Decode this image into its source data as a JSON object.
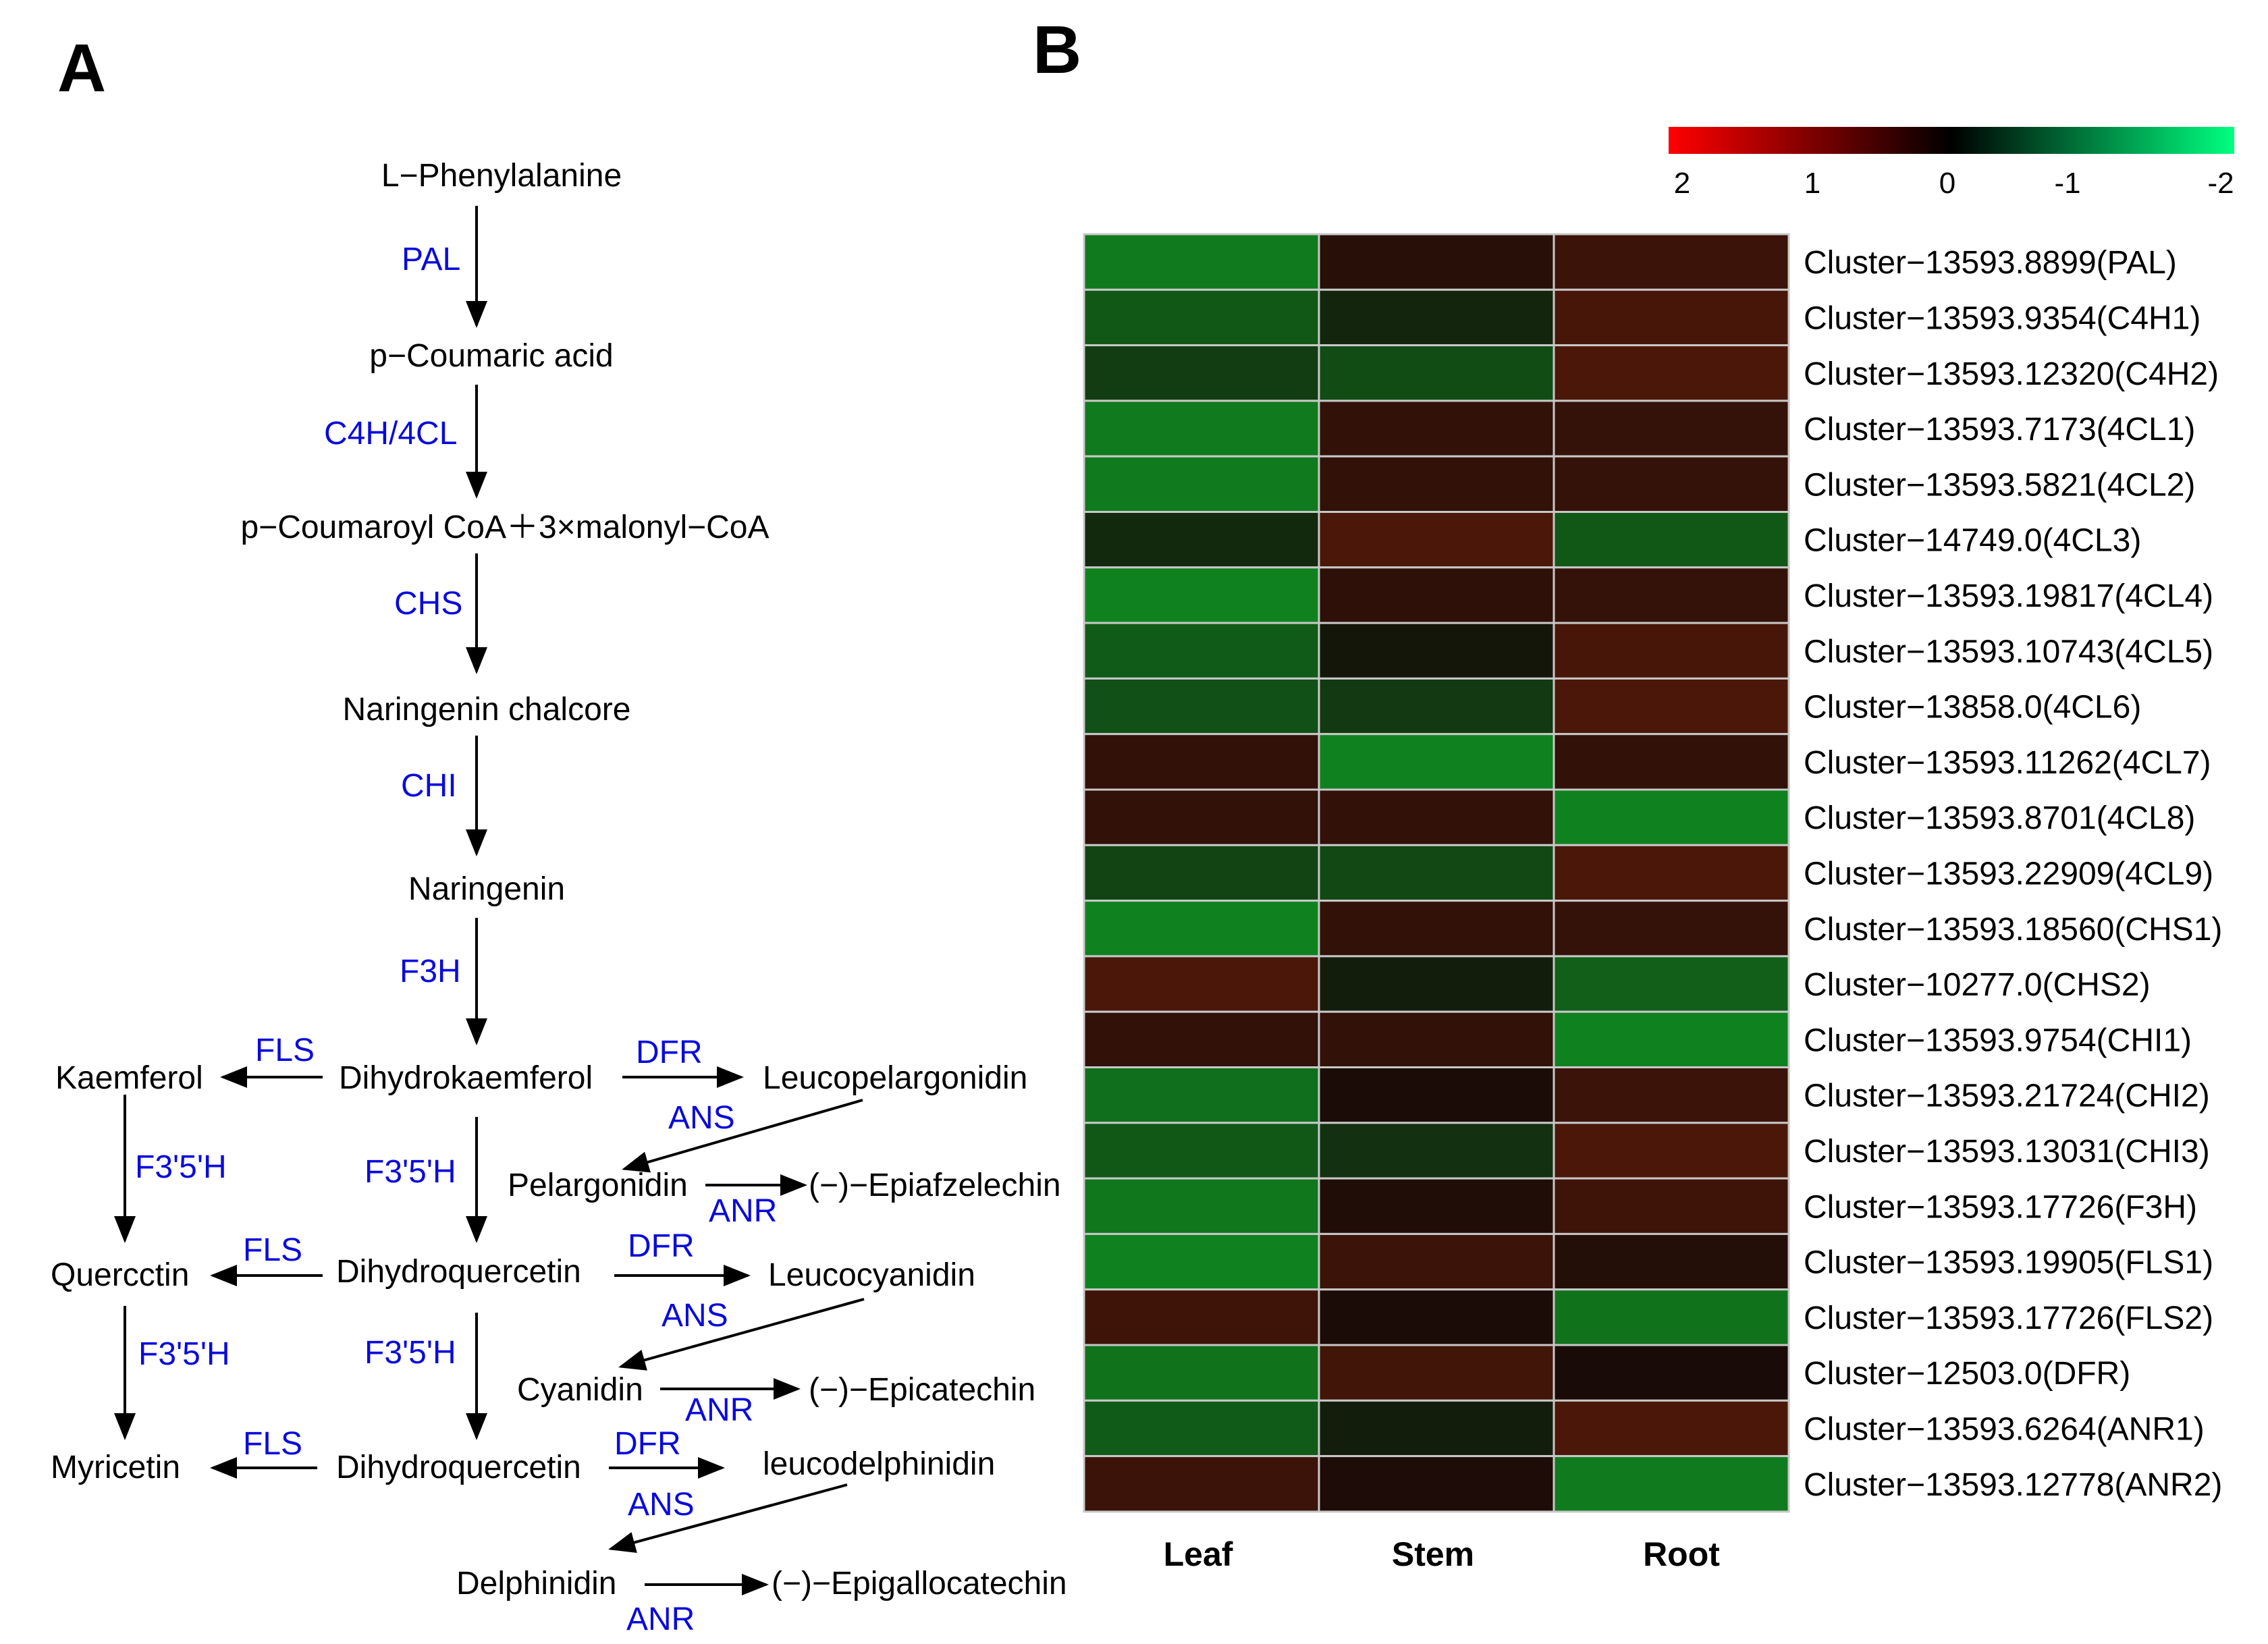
{
  "panels": {
    "a_label": "A",
    "b_label": "B"
  },
  "pathway": {
    "compounds": {
      "phe": "L−Phenylalanine",
      "coum": "p−Coumaric acid",
      "coa": "p−Coumaroyl CoA＋3×malonyl−CoA",
      "chalc": "Naringenin chalcore",
      "nar": "Naringenin",
      "dhk": "Dihydrokaemferol",
      "kaem": "Kaemferol",
      "leucopel": "Leucopelargonidin",
      "pel": "Pelargonidin",
      "epiaf": "(−)−Epiafzelechin",
      "querc": "Quercctin",
      "dhq1": "Dihydroquercetin",
      "leucocy": "Leucocyanidin",
      "cyan": "Cyanidin",
      "epicat": "(−)−Epicatechin",
      "myr": "Myricetin",
      "dhq2": "Dihydroquercetin",
      "leucodel": "leucodelphinidin",
      "delph": "Delphinidin",
      "epigallo": "(−)−Epigallocatechin"
    },
    "enzymes": {
      "pal": "PAL",
      "c4h4cl": "C4H/4CL",
      "chs": "CHS",
      "chi": "CHI",
      "f3h": "F3H",
      "fls1": "FLS",
      "dfr1": "DFR",
      "ans1": "ANS",
      "anr1": "ANR",
      "f35h_a": "F3'5'H",
      "f35h_b": "F3'5'H",
      "fls2": "FLS",
      "dfr2": "DFR",
      "ans2": "ANS",
      "anr2": "ANR",
      "f35h_c": "F3'5'H",
      "f35h_d": "F3'5'H",
      "fls3": "FLS",
      "dfr3": "DFR",
      "ans3": "ANS",
      "anr3": "ANR"
    }
  },
  "chart_data": {
    "type": "heatmap",
    "columns": [
      "Leaf",
      "Stem",
      "Root"
    ],
    "rows": [
      "Cluster−13593.8899(PAL)",
      "Cluster−13593.9354(C4H1)",
      "Cluster−13593.12320(C4H2)",
      "Cluster−13593.7173(4CL1)",
      "Cluster−13593.5821(4CL2)",
      "Cluster−14749.0(4CL3)",
      "Cluster−13593.19817(4CL4)",
      "Cluster−13593.10743(4CL5)",
      "Cluster−13858.0(4CL6)",
      "Cluster−13593.11262(4CL7)",
      "Cluster−13593.8701(4CL8)",
      "Cluster−13593.22909(4CL9)",
      "Cluster−13593.18560(CHS1)",
      "Cluster−10277.0(CHS2)",
      "Cluster−13593.9754(CHI1)",
      "Cluster−13593.21724(CHI2)",
      "Cluster−13593.13031(CHI3)",
      "Cluster−13593.17726(F3H)",
      "Cluster−13593.19905(FLS1)",
      "Cluster−13593.17726(FLS2)",
      "Cluster−12503.0(DFR)",
      "Cluster−13593.6264(ANR1)",
      "Cluster−13593.12778(ANR2)"
    ],
    "values": [
      [
        -1.45,
        0.3,
        0.6
      ],
      [
        -1.0,
        -0.35,
        0.8
      ],
      [
        -0.65,
        -0.85,
        0.85
      ],
      [
        -1.45,
        0.45,
        0.5
      ],
      [
        -1.45,
        0.45,
        0.5
      ],
      [
        -0.4,
        0.85,
        -1.0
      ],
      [
        -1.55,
        0.4,
        0.5
      ],
      [
        -1.05,
        -0.15,
        0.8
      ],
      [
        -0.9,
        -0.6,
        0.85
      ],
      [
        0.45,
        -1.55,
        0.45
      ],
      [
        0.45,
        0.45,
        -1.55
      ],
      [
        -0.75,
        -0.8,
        0.85
      ],
      [
        -1.55,
        0.45,
        0.5
      ],
      [
        0.85,
        -0.25,
        -1.1
      ],
      [
        0.45,
        0.45,
        -1.55
      ],
      [
        -1.3,
        0.1,
        0.6
      ],
      [
        -1.0,
        -0.5,
        0.85
      ],
      [
        -1.4,
        0.2,
        0.65
      ],
      [
        -1.55,
        0.6,
        0.25
      ],
      [
        0.65,
        0.1,
        -1.35
      ],
      [
        -1.35,
        0.7,
        0.08
      ],
      [
        -1.05,
        -0.25,
        0.85
      ],
      [
        0.6,
        0.15,
        -1.45
      ]
    ],
    "colorbar": {
      "ticks": [
        "2",
        "1",
        "0",
        "-1",
        "-2"
      ],
      "low_color": "#00ff7f",
      "mid_color": "#000000",
      "high_color": "#ff0000",
      "range": [
        -2,
        2
      ]
    }
  }
}
